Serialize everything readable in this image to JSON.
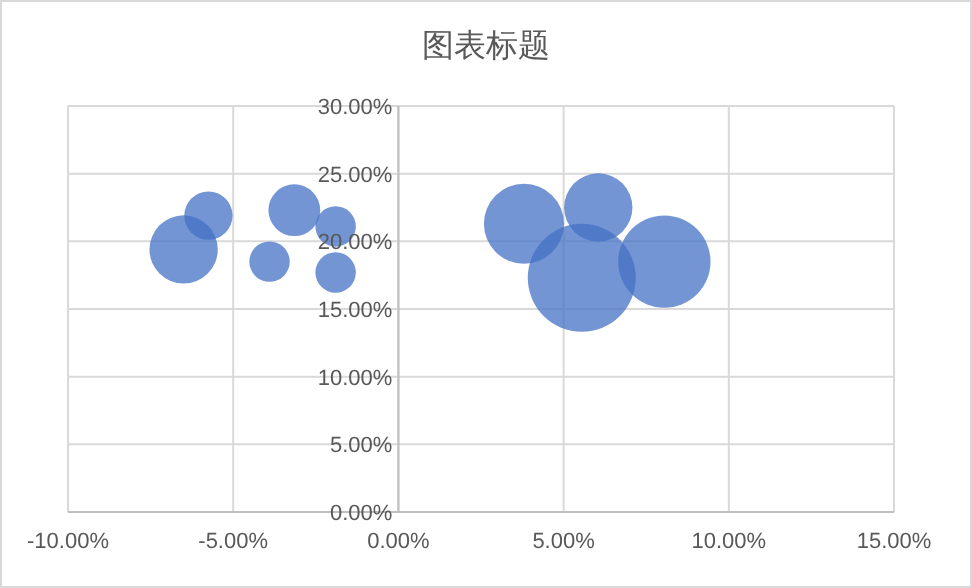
{
  "chart_data": {
    "type": "bubble",
    "title": "图表标题",
    "x": [
      -6.5,
      -5.75,
      -3.9,
      -3.15,
      -1.9,
      -1.9,
      3.8,
      6.05,
      5.55,
      8.05
    ],
    "values": [
      19.4,
      21.9,
      18.5,
      22.3,
      21.1,
      17.7,
      21.3,
      22.5,
      17.3,
      18.5
    ],
    "sizes": [
      0.4,
      0.2,
      0.14,
      0.23,
      0.14,
      0.14,
      0.55,
      0.4,
      1,
      0.73
    ],
    "color": "#4472c4",
    "xlim": [
      -10,
      15
    ],
    "ylim": [
      0,
      30
    ],
    "xticks": [
      {
        "value": -10,
        "label": "-10.00%"
      },
      {
        "value": -5,
        "label": "-5.00%"
      },
      {
        "value": 0,
        "label": "0.00%"
      },
      {
        "value": 5,
        "label": "5.00%"
      },
      {
        "value": 10,
        "label": "10.00%"
      },
      {
        "value": 15,
        "label": "15.00%"
      }
    ],
    "yticks": [
      {
        "value": 0,
        "label": "0.00%"
      },
      {
        "value": 5,
        "label": "5.00%"
      },
      {
        "value": 10,
        "label": "10.00%"
      },
      {
        "value": 15,
        "label": "15.00%"
      },
      {
        "value": 20,
        "label": "20.00%"
      },
      {
        "value": 25,
        "label": "25.00%"
      },
      {
        "value": 30,
        "label": "30.00%"
      }
    ],
    "grid": true
  }
}
